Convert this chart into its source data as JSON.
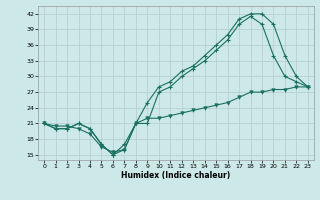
{
  "xlabel": "Humidex (Indice chaleur)",
  "xlim": [
    -0.5,
    23.5
  ],
  "ylim": [
    14,
    43.5
  ],
  "yticks": [
    15,
    18,
    21,
    24,
    27,
    30,
    33,
    36,
    39,
    42
  ],
  "xticks": [
    0,
    1,
    2,
    3,
    4,
    5,
    6,
    7,
    8,
    9,
    10,
    11,
    12,
    13,
    14,
    15,
    16,
    17,
    18,
    19,
    20,
    21,
    22,
    23
  ],
  "background_color": "#cce8e8",
  "grid_color": "#b8d0d0",
  "line_color": "#1a7060",
  "line1_x": [
    0,
    1,
    2,
    3,
    4,
    5,
    6,
    7,
    8,
    9,
    10,
    11,
    12,
    13,
    14,
    15,
    16,
    17,
    18,
    19,
    20,
    21,
    22,
    23
  ],
  "line1_y": [
    21,
    20,
    20,
    21,
    20,
    17,
    15,
    16,
    21,
    25,
    28,
    29,
    31,
    32,
    34,
    36,
    38,
    41,
    42,
    42,
    40,
    34,
    30,
    28
  ],
  "line2_x": [
    0,
    1,
    2,
    3,
    4,
    5,
    6,
    7,
    8,
    9,
    10,
    11,
    12,
    13,
    14,
    15,
    16,
    17,
    18,
    19,
    20,
    21,
    22,
    23
  ],
  "line2_y": [
    21,
    20,
    20,
    21,
    20,
    17,
    15,
    17,
    21,
    21,
    27,
    28,
    30,
    31.5,
    33,
    35,
    37,
    40,
    41.5,
    40,
    34,
    30,
    29,
    28
  ],
  "line3_x": [
    0,
    1,
    2,
    3,
    4,
    5,
    6,
    7,
    8,
    9,
    10,
    11,
    12,
    13,
    14,
    15,
    16,
    17,
    18,
    19,
    20,
    21,
    22,
    23
  ],
  "line3_y": [
    21,
    20.5,
    20.5,
    20,
    19,
    16.5,
    15.5,
    16,
    21,
    22,
    22,
    22.5,
    23,
    23.5,
    24,
    24.5,
    25,
    26,
    27,
    27,
    27.5,
    27.5,
    28,
    28
  ]
}
